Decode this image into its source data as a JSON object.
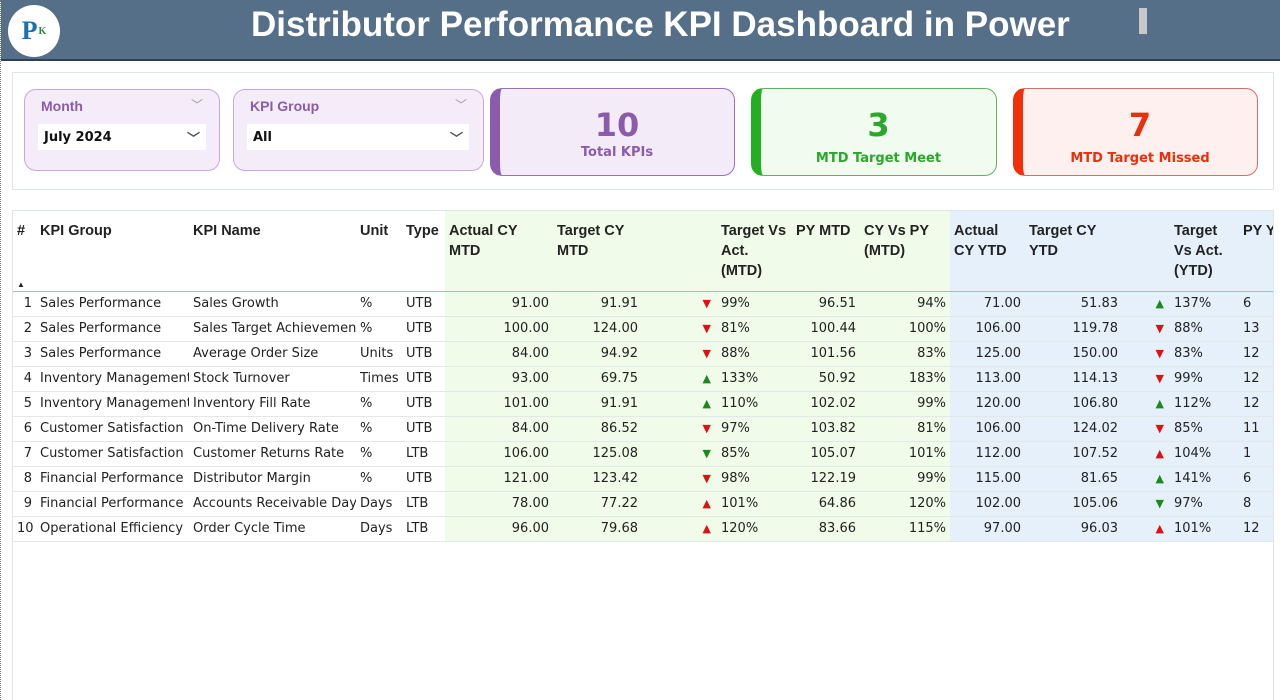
{
  "header": {
    "title": "Distributor Performance KPI Dashboard in Power",
    "logo_text": "PK"
  },
  "filters": {
    "month": {
      "label": "Month",
      "value": "July 2024"
    },
    "kpi_group": {
      "label": "KPI Group",
      "value": "All"
    }
  },
  "cards": [
    {
      "value": "10",
      "label": "Total KPIs",
      "color": "#8a5cab"
    },
    {
      "value": "3",
      "label": "MTD Target Meet",
      "color": "#2aa82a"
    },
    {
      "value": "7",
      "label": "MTD Target Missed",
      "color": "#e8300f"
    }
  ],
  "colors": {
    "up_good": "#1a8a1a",
    "bad": "#e01010"
  },
  "table": {
    "columns": [
      "#",
      "KPI Group",
      "KPI Name",
      "Unit",
      "Type",
      "Actual CY MTD",
      "Target CY MTD",
      "",
      "Target Vs Act. (MTD)",
      "PY MTD",
      "CY Vs PY (MTD)",
      "Actual CY YTD",
      "Target CY YTD",
      "",
      "Target Vs Act. (YTD)",
      "PY YTD"
    ],
    "rows": [
      {
        "n": "1",
        "group": "Sales Performance",
        "name": "Sales Growth",
        "unit": "%",
        "type": "UTB",
        "acm": "91.00",
        "tcm": "91.91",
        "am": "down",
        "amc": "red",
        "tvam": "99%",
        "pym": "96.51",
        "cvpm": "94%",
        "acy": "71.00",
        "tcy": "51.83",
        "ay": "up",
        "ayc": "green",
        "tvay": "137%",
        "pyy": "6"
      },
      {
        "n": "2",
        "group": "Sales Performance",
        "name": "Sales Target Achievement",
        "unit": "%",
        "type": "UTB",
        "acm": "100.00",
        "tcm": "124.00",
        "am": "down",
        "amc": "red",
        "tvam": "81%",
        "pym": "100.44",
        "cvpm": "100%",
        "acy": "106.00",
        "tcy": "119.78",
        "ay": "down",
        "ayc": "red",
        "tvay": "88%",
        "pyy": "13"
      },
      {
        "n": "3",
        "group": "Sales Performance",
        "name": "Average Order Size",
        "unit": "Units",
        "type": "UTB",
        "acm": "84.00",
        "tcm": "94.92",
        "am": "down",
        "amc": "red",
        "tvam": "88%",
        "pym": "101.56",
        "cvpm": "83%",
        "acy": "125.00",
        "tcy": "150.00",
        "ay": "down",
        "ayc": "red",
        "tvay": "83%",
        "pyy": "12"
      },
      {
        "n": "4",
        "group": "Inventory Management",
        "name": "Stock Turnover",
        "unit": "Times",
        "type": "UTB",
        "acm": "93.00",
        "tcm": "69.75",
        "am": "up",
        "amc": "green",
        "tvam": "133%",
        "pym": "50.92",
        "cvpm": "183%",
        "acy": "113.00",
        "tcy": "114.13",
        "ay": "down",
        "ayc": "red",
        "tvay": "99%",
        "pyy": "12"
      },
      {
        "n": "5",
        "group": "Inventory Management",
        "name": "Inventory Fill Rate",
        "unit": "%",
        "type": "UTB",
        "acm": "101.00",
        "tcm": "91.91",
        "am": "up",
        "amc": "green",
        "tvam": "110%",
        "pym": "102.02",
        "cvpm": "99%",
        "acy": "120.00",
        "tcy": "106.80",
        "ay": "up",
        "ayc": "green",
        "tvay": "112%",
        "pyy": "12"
      },
      {
        "n": "6",
        "group": "Customer Satisfaction",
        "name": "On-Time Delivery Rate",
        "unit": "%",
        "type": "UTB",
        "acm": "84.00",
        "tcm": "86.52",
        "am": "down",
        "amc": "red",
        "tvam": "97%",
        "pym": "103.82",
        "cvpm": "81%",
        "acy": "106.00",
        "tcy": "124.02",
        "ay": "down",
        "ayc": "red",
        "tvay": "85%",
        "pyy": "11"
      },
      {
        "n": "7",
        "group": "Customer Satisfaction",
        "name": "Customer Returns Rate",
        "unit": "%",
        "type": "LTB",
        "acm": "106.00",
        "tcm": "125.08",
        "am": "down",
        "amc": "green",
        "tvam": "85%",
        "pym": "105.07",
        "cvpm": "101%",
        "acy": "112.00",
        "tcy": "107.52",
        "ay": "up",
        "ayc": "red",
        "tvay": "104%",
        "pyy": "1"
      },
      {
        "n": "8",
        "group": "Financial Performance",
        "name": "Distributor Margin",
        "unit": "%",
        "type": "UTB",
        "acm": "121.00",
        "tcm": "123.42",
        "am": "down",
        "amc": "red",
        "tvam": "98%",
        "pym": "122.19",
        "cvpm": "99%",
        "acy": "115.00",
        "tcy": "81.65",
        "ay": "up",
        "ayc": "green",
        "tvay": "141%",
        "pyy": "6"
      },
      {
        "n": "9",
        "group": "Financial Performance",
        "name": "Accounts Receivable Days",
        "unit": "Days",
        "type": "LTB",
        "acm": "78.00",
        "tcm": "77.22",
        "am": "up",
        "amc": "red",
        "tvam": "101%",
        "pym": "64.86",
        "cvpm": "120%",
        "acy": "102.00",
        "tcy": "105.06",
        "ay": "down",
        "ayc": "green",
        "tvay": "97%",
        "pyy": "8"
      },
      {
        "n": "10",
        "group": "Operational Efficiency",
        "name": "Order Cycle Time",
        "unit": "Days",
        "type": "LTB",
        "acm": "96.00",
        "tcm": "79.68",
        "am": "up",
        "amc": "red",
        "tvam": "120%",
        "pym": "83.66",
        "cvpm": "115%",
        "acy": "97.00",
        "tcy": "96.03",
        "ay": "up",
        "ayc": "red",
        "tvay": "101%",
        "pyy": "12"
      }
    ]
  }
}
